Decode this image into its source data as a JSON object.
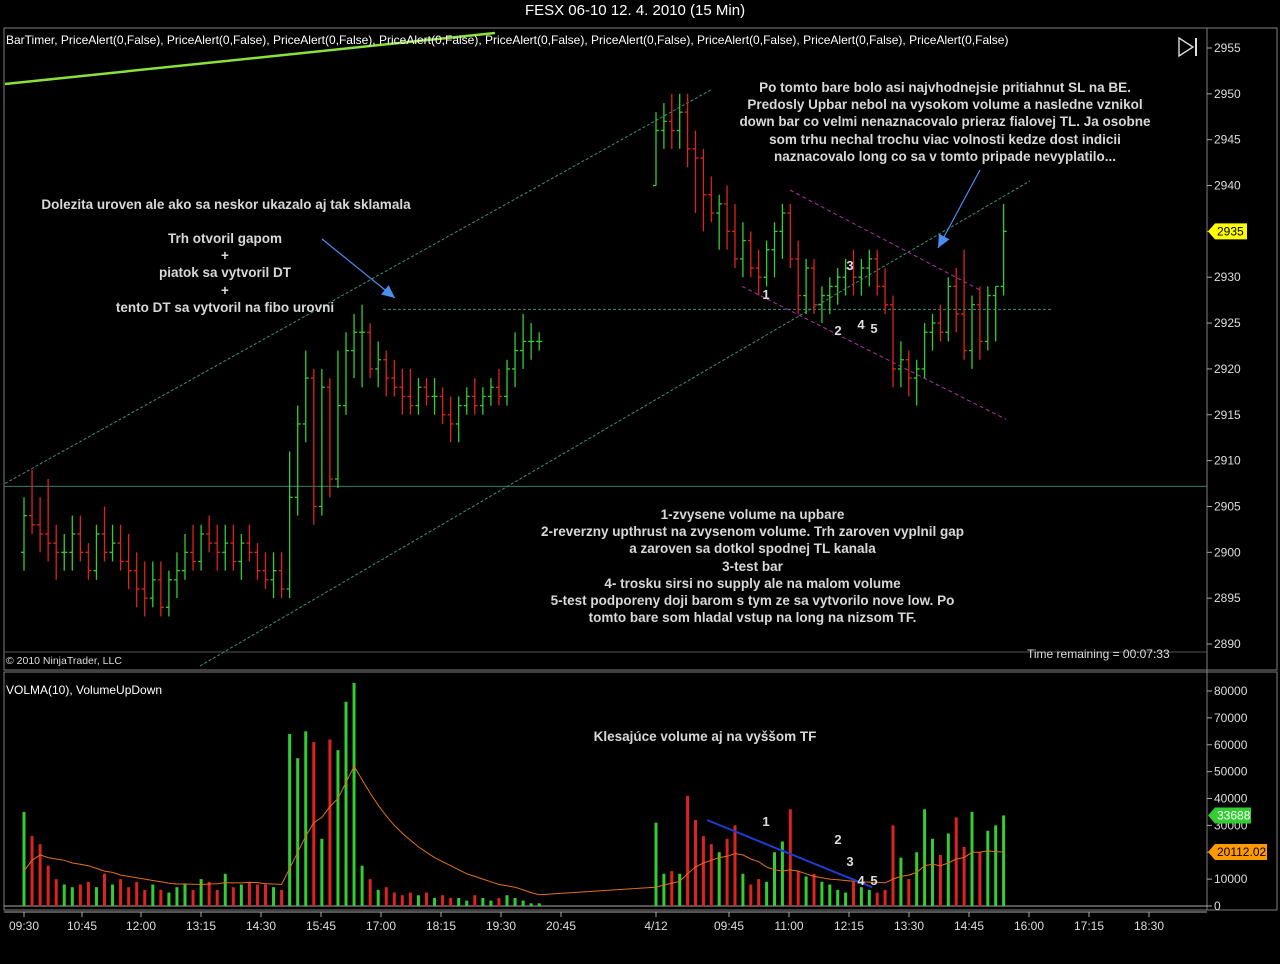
{
  "window": {
    "title": "FESX 06-10  12. 4. 2010 (15 Min)",
    "price_indicators": "BarTimer, PriceAlert(0,False), PriceAlert(0,False), PriceAlert(0,False), PriceAlert(0,False), PriceAlert(0,False), PriceAlert(0,False), PriceAlert(0,False), PriceAlert(0,False), PriceAlert(0,False)",
    "volume_indicators": "VOLMA(10), VolumeUpDown",
    "copyright": "© 2010 NinjaTrader, LLC",
    "time_remaining": "Time remaining = 00:07:33",
    "last_price_label": "2935",
    "volume_last_label": "33688",
    "volma_last_label": "20112.02",
    "colors": {
      "up": "#33cc33",
      "down": "#dd2222",
      "volma": "#e07020",
      "trendline": "#8be03a",
      "channel": "#3f8f7f",
      "purple": "#b030b0",
      "arrow": "#4a8ff0",
      "price_tag": "#ffff00",
      "vol_tag": "#33cc33",
      "volma_tag": "#ff9900"
    }
  },
  "notes": {
    "left_top": "Dolezita uroven ale ako sa neskor ukazalo aj tak sklamala",
    "left_lines": [
      "Trh otvoril gapom",
      "+",
      "piatok sa vytvoril DT",
      "+",
      "tento DT sa vytvoril na fibo urovni"
    ],
    "right_lines": [
      "Po tomto bare bolo asi najvhodnejsie pritiahnut SL na BE.",
      "Predosly Upbar nebol na vysokom volume a nasledne vznikol",
      "down bar co velmi nenaznacovalo prieraz fialovej TL. Ja osobne",
      "som trhu nechal trochu viac volnosti kedze dost indicii",
      "naznacovalo long co sa v tomto pripade nevyplatilo..."
    ],
    "bottom_lines": [
      "1-zvysene volume na upbare",
      "2-reverzny upthrust na zvysenom volume. Trh zaroven vyplnil gap",
      "a zaroven sa dotkol spodnej TL kanala",
      "3-test bar",
      "4- trosku sirsi no supply ale na malom volume",
      "5-test podporeny doji barom s tym ze sa vytvorilo nove low. Po",
      "tomto bare som hladal vstup na long na nizsom TF."
    ],
    "volume_note": "Klesajúce volume aj na vyššom TF"
  },
  "markers": {
    "price": [
      "1",
      "2",
      "3",
      "4",
      "5"
    ],
    "volume": [
      "1",
      "2",
      "3",
      "4",
      "5"
    ]
  },
  "chart_data": [
    {
      "type": "ohlc",
      "title": "FESX 06-10  12. 4. 2010 (15 Min)",
      "y_ticks": [
        2890,
        2895,
        2900,
        2905,
        2910,
        2915,
        2920,
        2925,
        2930,
        2935,
        2940,
        2945,
        2950,
        2955
      ],
      "ylim": [
        2886,
        2956
      ],
      "x_ticks": [
        "09:30",
        "10:45",
        "12:00",
        "13:15",
        "14:30",
        "15:45",
        "17:00",
        "18:15",
        "19:30",
        "20:45",
        "4/12",
        "09:45",
        "11:00",
        "12:15",
        "13:30",
        "14:45",
        "16:00",
        "17:15",
        "18:30"
      ],
      "horizontal_levels": [
        2926.5,
        2907.2
      ],
      "bars": [
        [
          2900,
          2906,
          2898,
          2904
        ],
        [
          2904,
          2909,
          2902,
          2903
        ],
        [
          2903,
          2906,
          2900,
          2902
        ],
        [
          2902,
          2908,
          2899,
          2901
        ],
        [
          2901,
          2903,
          2897,
          2900
        ],
        [
          2900,
          2902,
          2898,
          2900
        ],
        [
          2900,
          2904,
          2898,
          2902
        ],
        [
          2902,
          2904,
          2899,
          2900
        ],
        [
          2900,
          2901,
          2897,
          2898
        ],
        [
          2898,
          2903,
          2897,
          2902
        ],
        [
          2902,
          2905,
          2899,
          2900
        ],
        [
          2900,
          2903,
          2899,
          2901
        ],
        [
          2901,
          2903,
          2898,
          2899
        ],
        [
          2899,
          2902,
          2896,
          2898
        ],
        [
          2898,
          2900,
          2894,
          2896
        ],
        [
          2896,
          2899,
          2893,
          2895
        ],
        [
          2895,
          2899,
          2894,
          2897
        ],
        [
          2897,
          2899,
          2893,
          2894
        ],
        [
          2894,
          2898,
          2893,
          2897
        ],
        [
          2897,
          2900,
          2895,
          2898
        ],
        [
          2898,
          2902,
          2897,
          2900
        ],
        [
          2900,
          2903,
          2898,
          2899
        ],
        [
          2899,
          2903,
          2898,
          2902
        ],
        [
          2902,
          2904,
          2900,
          2901
        ],
        [
          2901,
          2903,
          2898,
          2900
        ],
        [
          2900,
          2903,
          2898,
          2901
        ],
        [
          2901,
          2903,
          2898,
          2899
        ],
        [
          2899,
          2902,
          2897,
          2901
        ],
        [
          2901,
          2903,
          2899,
          2900
        ],
        [
          2900,
          2901,
          2897,
          2898
        ],
        [
          2898,
          2900,
          2896,
          2897
        ],
        [
          2897,
          2900,
          2895,
          2898
        ],
        [
          2898,
          2900,
          2895,
          2896
        ],
        [
          2896,
          2911,
          2895,
          2906
        ],
        [
          2906,
          2916,
          2904,
          2914
        ],
        [
          2914,
          2922,
          2912,
          2919
        ],
        [
          2919,
          2920,
          2903,
          2905
        ],
        [
          2905,
          2920,
          2904,
          2918
        ],
        [
          2918,
          2919,
          2906,
          2908
        ],
        [
          2908,
          2922,
          2907,
          2916
        ],
        [
          2916,
          2924,
          2915,
          2922
        ],
        [
          2922,
          2926,
          2919,
          2924
        ],
        [
          2924,
          2927,
          2918,
          2924
        ],
        [
          2924,
          2925,
          2919,
          2920
        ],
        [
          2920,
          2923,
          2918,
          2921
        ],
        [
          2921,
          2922,
          2917,
          2919
        ],
        [
          2919,
          2921,
          2917,
          2918
        ],
        [
          2918,
          2920,
          2915,
          2917
        ],
        [
          2917,
          2920,
          2915,
          2916
        ],
        [
          2916,
          2919,
          2915,
          2918
        ],
        [
          2918,
          2919,
          2916,
          2917
        ],
        [
          2917,
          2919,
          2915,
          2917
        ],
        [
          2917,
          2918,
          2914,
          2915
        ],
        [
          2915,
          2917,
          2912,
          2914
        ],
        [
          2914,
          2917,
          2912,
          2916
        ],
        [
          2916,
          2918,
          2915,
          2917
        ],
        [
          2917,
          2919,
          2915,
          2916
        ],
        [
          2916,
          2918,
          2915,
          2917
        ],
        [
          2917,
          2919,
          2916,
          2918
        ],
        [
          2918,
          2920,
          2916,
          2917
        ],
        [
          2917,
          2921,
          2916,
          2920
        ],
        [
          2920,
          2924,
          2918,
          2922
        ],
        [
          2922,
          2926,
          2920,
          2923
        ],
        [
          2923,
          2925,
          2921,
          2923
        ],
        [
          2923,
          2924,
          2922,
          2923
        ],
        [
          2940,
          2948,
          2940,
          2946
        ],
        [
          2946,
          2949,
          2944,
          2947
        ],
        [
          2947,
          2950,
          2944,
          2946
        ],
        [
          2946,
          2950,
          2944,
          2948
        ],
        [
          2948,
          2950,
          2942,
          2944
        ],
        [
          2944,
          2946,
          2937,
          2943
        ],
        [
          2943,
          2944,
          2935,
          2939
        ],
        [
          2939,
          2941,
          2936,
          2937
        ],
        [
          2937,
          2939,
          2933,
          2938
        ],
        [
          2938,
          2940,
          2933,
          2935
        ],
        [
          2935,
          2938,
          2931,
          2932
        ],
        [
          2932,
          2936,
          2930,
          2934
        ],
        [
          2934,
          2935,
          2930,
          2931
        ],
        [
          2931,
          2933,
          2928,
          2930
        ],
        [
          2930,
          2934,
          2929,
          2933
        ],
        [
          2933,
          2936,
          2930,
          2935
        ],
        [
          2935,
          2938,
          2932,
          2937
        ],
        [
          2937,
          2938,
          2931,
          2932
        ],
        [
          2932,
          2934,
          2926,
          2928
        ],
        [
          2928,
          2932,
          2926,
          2931
        ],
        [
          2931,
          2932,
          2926,
          2927
        ],
        [
          2927,
          2929,
          2925,
          2928
        ],
        [
          2928,
          2930,
          2926,
          2929
        ],
        [
          2929,
          2931,
          2927,
          2930
        ],
        [
          2930,
          2932,
          2928,
          2931
        ],
        [
          2931,
          2933,
          2928,
          2930
        ],
        [
          2930,
          2932,
          2928,
          2931
        ],
        [
          2931,
          2933,
          2929,
          2932
        ],
        [
          2932,
          2933,
          2928,
          2929
        ],
        [
          2929,
          2931,
          2926,
          2927
        ],
        [
          2927,
          2928,
          2918,
          2920
        ],
        [
          2920,
          2923,
          2918,
          2921
        ],
        [
          2921,
          2922,
          2917,
          2919
        ],
        [
          2919,
          2921,
          2916,
          2920
        ],
        [
          2920,
          2925,
          2919,
          2924
        ],
        [
          2924,
          2926,
          2922,
          2925
        ],
        [
          2925,
          2927,
          2923,
          2924
        ],
        [
          2924,
          2930,
          2923,
          2929
        ],
        [
          2929,
          2931,
          2924,
          2926
        ],
        [
          2926,
          2933,
          2921,
          2922
        ],
        [
          2922,
          2928,
          2920,
          2927
        ],
        [
          2927,
          2929,
          2921,
          2923
        ],
        [
          2923,
          2929,
          2922,
          2928
        ],
        [
          2928,
          2929,
          2923,
          2929
        ],
        [
          2929,
          2938,
          2928,
          2935
        ]
      ]
    },
    {
      "type": "bar",
      "title": "VOLMA(10), VolumeUpDown",
      "y_ticks": [
        0,
        10000,
        20000,
        30000,
        40000,
        50000,
        60000,
        70000,
        80000
      ],
      "ylim": [
        0,
        84000
      ],
      "volume": [
        35000,
        26000,
        23000,
        15000,
        10000,
        8000,
        7000,
        8000,
        9000,
        7000,
        12000,
        8000,
        10000,
        7000,
        9000,
        6000,
        8000,
        6000,
        5000,
        7000,
        8000,
        6000,
        10000,
        9000,
        6000,
        12000,
        7000,
        8000,
        9000,
        8000,
        8000,
        7000,
        6000,
        64000,
        55000,
        65000,
        61000,
        25000,
        62000,
        58000,
        76000,
        83000,
        15000,
        10000,
        6000,
        7000,
        5000,
        4000,
        5000,
        4000,
        5000,
        3000,
        4000,
        3000,
        3000,
        2000,
        4000,
        3000,
        2000,
        3000,
        4000,
        3000,
        2000,
        1000,
        1000,
        31000,
        12000,
        13000,
        12000,
        41000,
        32000,
        26000,
        23000,
        20000,
        25000,
        30000,
        12000,
        8000,
        10000,
        9000,
        20000,
        24000,
        36000,
        13000,
        11000,
        12000,
        9000,
        8000,
        6000,
        5000,
        9000,
        7000,
        6000,
        5000,
        6000,
        30000,
        18000,
        10000,
        20000,
        36000,
        25000,
        19000,
        27000,
        33000,
        22000,
        35000,
        20000,
        28000,
        30000,
        33688
      ],
      "volma": [
        13000,
        17000,
        19000,
        18000,
        17500,
        17000,
        16000,
        15500,
        15000,
        14000,
        13000,
        12500,
        11500,
        11000,
        10500,
        10000,
        9500,
        9000,
        8500,
        8200,
        8200,
        8100,
        8000,
        8200,
        8300,
        8700,
        8600,
        8600,
        8800,
        8700,
        8300,
        8200,
        8000,
        14000,
        20000,
        26000,
        31000,
        33000,
        37000,
        40000,
        46000,
        52000,
        47000,
        42000,
        37500,
        33500,
        30000,
        27000,
        24500,
        22000,
        20000,
        18000,
        16500,
        15000,
        13500,
        12000,
        11000,
        10000,
        9000,
        8000,
        7500,
        7000,
        6000,
        5000,
        4200,
        7000,
        7800,
        8500,
        9200,
        12000,
        14500,
        16000,
        17000,
        18000,
        18500,
        19500,
        19000,
        17500,
        16500,
        14500,
        13500,
        13000,
        13500,
        13000,
        12000,
        11000,
        10500,
        10000,
        9800,
        9500,
        9200,
        9000,
        8900,
        8800,
        8600,
        10000,
        11000,
        11500,
        12500,
        15000,
        15500,
        15000,
        16000,
        17500,
        18000,
        20000,
        20000,
        20500,
        20200,
        20112.02
      ]
    }
  ]
}
